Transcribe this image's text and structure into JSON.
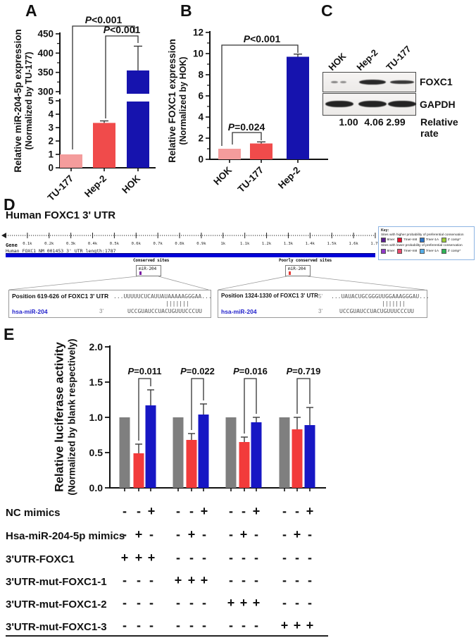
{
  "panel_a": {
    "letter": "A",
    "ylabel_line1": "Relative miR-204-5p expression",
    "ylabel_line2": "(Normalized by TU-177)"
  },
  "panel_b": {
    "letter": "B",
    "ylabel_line1": "Relative FOXC1 expression",
    "ylabel_line2": "(Normalized by HOK)"
  },
  "panel_c": {
    "letter": "C",
    "lanes": [
      "HOK",
      "Hep-2",
      "TU-177"
    ],
    "blots": [
      {
        "label": "FOXC1",
        "bands": [
          {
            "lane": "HOK",
            "intensity": "weak"
          },
          {
            "lane": "Hep-2",
            "intensity": "strong"
          },
          {
            "lane": "TU-177",
            "intensity": "medium"
          }
        ]
      },
      {
        "label": "GAPDH",
        "bands": [
          {
            "lane": "HOK",
            "intensity": "strong"
          },
          {
            "lane": "Hep-2",
            "intensity": "strong"
          },
          {
            "lane": "TU-177",
            "intensity": "strong"
          }
        ]
      }
    ],
    "rates": [
      "1.00",
      "4.06",
      "2.99"
    ],
    "rates_caption": "Relative rate"
  },
  "panel_d": {
    "letter": "D",
    "title": "Human FOXC1 3' UTR",
    "ruler_ticks": [
      "0.1k",
      "0.2k",
      "0.3k",
      "0.4k",
      "0.5k",
      "0.6k",
      "0.7k",
      "0.8k",
      "0.9k",
      "1k",
      "1.1k",
      "1.2k",
      "1.3k",
      "1.4k",
      "1.5k",
      "1.6k",
      "1.7k"
    ],
    "gene_caption": "Gene",
    "gene_name": "Human FOXC1 NM_001453 3' UTR length:1787",
    "gene_bar_color": "#0000D8",
    "conserved_label": "Conserved sites",
    "poorly_label": "Poorly conserved sites",
    "site_boxes": [
      {
        "label": "miR-204",
        "tick_color": "#7B1FA2"
      },
      {
        "label": "miR-204",
        "tick_color": "#E53935"
      }
    ],
    "key": {
      "title": "Key:",
      "higher_label": "Sites with higher probability of preferential conservation",
      "lower_label": "Sites with lower probability of preferential conservation",
      "higher_items": [
        {
          "name": "8mer",
          "color": "#5B1E8E"
        },
        {
          "name": "7mer-m8",
          "color": "#E8112D"
        },
        {
          "name": "7mer-1A",
          "color": "#2E75C6"
        },
        {
          "name": "3' comp*",
          "color": "#9FCC3B"
        }
      ],
      "lower_items": [
        {
          "name": "8mer",
          "color": "#9038C8"
        },
        {
          "name": "7mer-m8",
          "color": "#E84C6E"
        },
        {
          "name": "7mer-1A",
          "color": "#56AEE8"
        },
        {
          "name": "3' comp*",
          "color": "#2FB457"
        }
      ]
    },
    "alignments": [
      {
        "position": "Position 619-626 of FOXC1 3' UTR",
        "five": "5'",
        "utr_seq": "...UUUUUCUCAUUAUAAAAAGGGAA...",
        "pairs": "|||||||",
        "mirna": "hsa-miR-204",
        "three": "3'",
        "mirna_seq": "UCCGUAUCCUACUGUUUCCCUU"
      },
      {
        "position": "Position 1324-1330 of FOXC1 3' UTR",
        "five": "5'",
        "utr_seq": "...UAUACUGCGGGUUGGAAAGGGAU...",
        "pairs": "|||||||",
        "mirna": "hsa-miR-204",
        "three": "3'",
        "mirna_seq": "UCCGUAUCCUACUGUUUCCCUU"
      }
    ]
  },
  "panel_e": {
    "letter": "E",
    "ylabel_line1": "Relative luciferase activity",
    "ylabel_line2": "(Normalized by blank respectively)",
    "matrix_rows": [
      {
        "label": "NC mimics",
        "signs": [
          "-",
          "-",
          "+",
          "-",
          "-",
          "+",
          "-",
          "-",
          "+",
          "-",
          "-",
          "+"
        ]
      },
      {
        "label": "Hsa-miR-204-5p mimics",
        "signs": [
          "-",
          "+",
          "-",
          "-",
          "+",
          "-",
          "-",
          "+",
          "-",
          "-",
          "+",
          "-"
        ]
      },
      {
        "label": "3'UTR-FOXC1",
        "signs": [
          "+",
          "+",
          "+",
          "-",
          "-",
          "-",
          "-",
          "-",
          "-",
          "-",
          "-",
          "-"
        ]
      },
      {
        "label": "3'UTR-mut-FOXC1-1",
        "signs": [
          "-",
          "-",
          "-",
          "+",
          "+",
          "+",
          "-",
          "-",
          "-",
          "-",
          "-",
          "-"
        ]
      },
      {
        "label": "3'UTR-mut-FOXC1-2",
        "signs": [
          "-",
          "-",
          "-",
          "-",
          "-",
          "-",
          "+",
          "+",
          "+",
          "-",
          "-",
          "-"
        ]
      },
      {
        "label": "3'UTR-mut-FOXC1-3",
        "signs": [
          "-",
          "-",
          "-",
          "-",
          "-",
          "-",
          "-",
          "-",
          "-",
          "+",
          "+",
          "+"
        ]
      }
    ]
  },
  "chart_data": [
    {
      "id": "chartA",
      "type": "bar",
      "ylabel": "Relative miR-204-5p expression (Normalized by TU-177)",
      "categories": [
        "TU-177",
        "Hep-2",
        "HOK"
      ],
      "values": [
        1.0,
        3.35,
        355
      ],
      "errors": [
        0,
        0.15,
        63
      ],
      "colors": [
        "#F49C9C",
        "#F04B4B",
        "#1613AE"
      ],
      "axis_break": true,
      "segments": [
        {
          "range": [
            0,
            5
          ],
          "ticks": [
            0,
            1,
            2,
            3,
            4,
            5
          ]
        },
        {
          "range": [
            300,
            450
          ],
          "ticks": [
            300,
            350,
            400,
            450
          ],
          "minor_ticks": [
            325,
            375,
            425
          ]
        }
      ],
      "brackets": [
        {
          "from": "TU-177",
          "to": "HOK",
          "label": "P<0.001"
        },
        {
          "from": "Hep-2",
          "to": "HOK",
          "label": "P<0.001"
        }
      ]
    },
    {
      "id": "chartB",
      "type": "bar",
      "ylabel": "Relative FOXC1 expression (Normalized by HOK)",
      "categories": [
        "HOK",
        "TU-177",
        "Hep-2"
      ],
      "values": [
        1.0,
        1.5,
        9.7
      ],
      "errors": [
        0,
        0.15,
        0.25
      ],
      "colors": [
        "#F49C9C",
        "#F04B4B",
        "#1613AE"
      ],
      "ylim": [
        0,
        12
      ],
      "yticks": [
        0,
        2,
        4,
        6,
        8,
        10,
        12
      ],
      "minor_yticks": [
        1,
        3,
        5,
        7,
        9,
        11
      ],
      "brackets": [
        {
          "from": "HOK",
          "to": "TU-177",
          "label": "P=0.024"
        },
        {
          "from": "HOK",
          "to": "Hep-2",
          "label": "P<0.001"
        }
      ]
    },
    {
      "id": "chartE",
      "type": "grouped-bar",
      "ylabel": "Relative luciferase activity (Normalized by blank respectively)",
      "n_groups": 4,
      "group_pvalues": [
        "P=0.011",
        "P=0.022",
        "P=0.016",
        "P=0.719"
      ],
      "series": [
        {
          "name": "gray",
          "color": "#7F7F7F",
          "values": [
            1.0,
            1.0,
            1.0,
            1.0
          ],
          "errors": [
            0,
            0,
            0,
            0
          ]
        },
        {
          "name": "red",
          "color": "#F23B3B",
          "values": [
            0.49,
            0.68,
            0.65,
            0.83
          ],
          "errors": [
            0.13,
            0.09,
            0.07,
            0.17
          ]
        },
        {
          "name": "blue",
          "color": "#1717C4",
          "values": [
            1.17,
            1.04,
            0.93,
            0.89
          ],
          "errors": [
            0.22,
            0.15,
            0.07,
            0.25
          ]
        }
      ],
      "ylim": [
        0,
        2.0
      ],
      "yticks": [
        "0.0",
        "0.5",
        "1.0",
        "1.5",
        "2.0"
      ]
    }
  ]
}
